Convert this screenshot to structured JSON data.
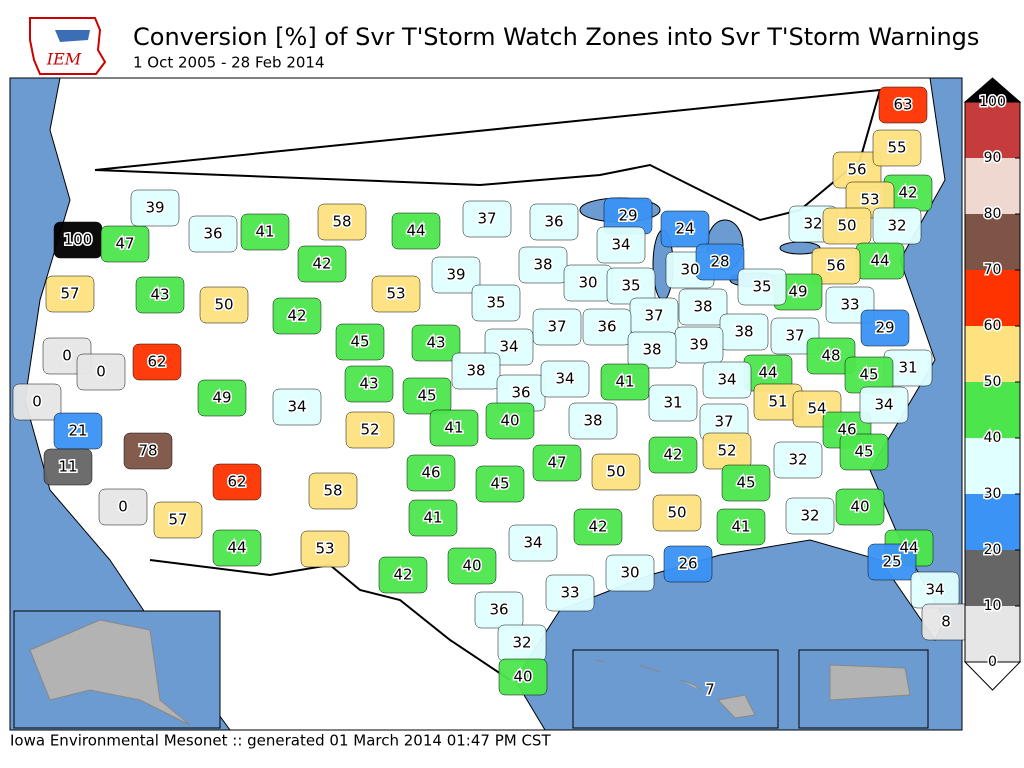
{
  "header": {
    "logo": "IEM",
    "title": "Conversion [%] of Svr T'Storm Watch Zones into Svr T'Storm Warnings",
    "subtitle": "1 Oct 2005 - 28 Feb 2014"
  },
  "footer": "Iowa Environmental Mesonet :: generated 01 March 2014 01:47 PM CST",
  "colorbar": {
    "ticks": [
      0,
      10,
      20,
      30,
      40,
      50,
      60,
      70,
      80,
      90,
      100
    ],
    "colors": [
      "#e6e6e6",
      "#666666",
      "#3a93f5",
      "#e0ffff",
      "#4ce64c",
      "#fde27f",
      "#ff3300",
      "#7d5445",
      "#eed8d0",
      "#c63c3c"
    ],
    "over": "#000000",
    "under": "#ffffff"
  },
  "labels": [
    100,
    47,
    39,
    36,
    41,
    58,
    44,
    37,
    36,
    29,
    24,
    34,
    42,
    57,
    43,
    50,
    42,
    53,
    39,
    38,
    30,
    35,
    30,
    28,
    56,
    55,
    63,
    42,
    53,
    32,
    50,
    32,
    44,
    56,
    49,
    35,
    33,
    29,
    38,
    37,
    36,
    37,
    35,
    45,
    43,
    34,
    38,
    37,
    39,
    38,
    48,
    31,
    45,
    62,
    0,
    0,
    49,
    34,
    43,
    45,
    38,
    36,
    34,
    41,
    44,
    34,
    51,
    54,
    31,
    0,
    21,
    78,
    52,
    41,
    40,
    38,
    37,
    46,
    34,
    45,
    11,
    62,
    58,
    46,
    45,
    47,
    50,
    42,
    52,
    45,
    32,
    40,
    0,
    57,
    41,
    42,
    50,
    41,
    32,
    44,
    53,
    34,
    44,
    26,
    25,
    42,
    40,
    30,
    33,
    34,
    36,
    8,
    32,
    40,
    7
  ]
}
